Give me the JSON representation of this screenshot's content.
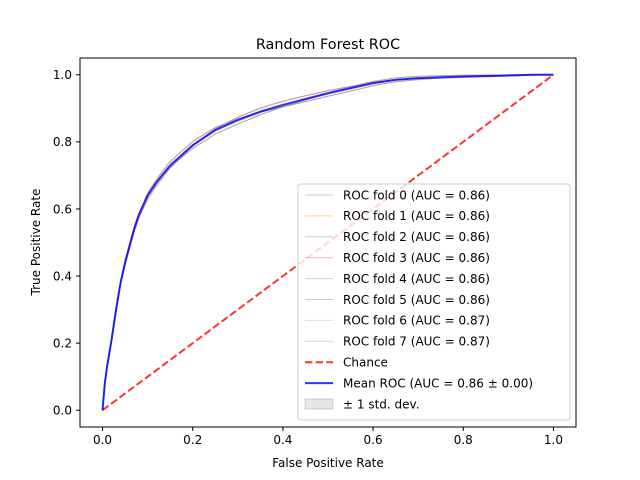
{
  "chart_data": {
    "type": "line",
    "title": "Random Forest ROC",
    "xlabel": "False Positive Rate",
    "ylabel": "True Positive Rate",
    "xlim": [
      -0.05,
      1.05
    ],
    "ylim": [
      -0.05,
      1.05
    ],
    "xticks": [
      "0.0",
      "0.2",
      "0.4",
      "0.6",
      "0.8",
      "1.0"
    ],
    "yticks": [
      "0.0",
      "0.2",
      "0.4",
      "0.6",
      "0.8",
      "1.0"
    ],
    "grid": false,
    "legend_position": "lower right",
    "series": [
      {
        "name": "ROC fold 0 (AUC = 0.86)",
        "color": "#1f77b4",
        "kind": "fold"
      },
      {
        "name": "ROC fold 1 (AUC = 0.86)",
        "color": "#ff7f0e",
        "kind": "fold"
      },
      {
        "name": "ROC fold 2 (AUC = 0.86)",
        "color": "#2ca02c",
        "kind": "fold"
      },
      {
        "name": "ROC fold 3 (AUC = 0.86)",
        "color": "#d62728",
        "kind": "fold"
      },
      {
        "name": "ROC fold 4 (AUC = 0.86)",
        "color": "#9467bd",
        "kind": "fold"
      },
      {
        "name": "ROC fold 5 (AUC = 0.86)",
        "color": "#8c564b",
        "kind": "fold"
      },
      {
        "name": "ROC fold 6 (AUC = 0.87)",
        "color": "#e377c2",
        "kind": "fold"
      },
      {
        "name": "ROC fold 7 (AUC = 0.87)",
        "color": "#7f7f7f",
        "kind": "fold"
      },
      {
        "name": "Chance",
        "color": "#ff0000",
        "kind": "chance",
        "x": [
          0,
          1
        ],
        "y": [
          0,
          1
        ]
      },
      {
        "name": "Mean ROC (AUC = 0.86 ± 0.00)",
        "color": "#0000ff",
        "kind": "mean",
        "x": [
          0,
          0.005,
          0.01,
          0.02,
          0.03,
          0.04,
          0.05,
          0.06,
          0.07,
          0.08,
          0.1,
          0.12,
          0.15,
          0.2,
          0.25,
          0.3,
          0.35,
          0.4,
          0.5,
          0.55,
          0.6,
          0.65,
          0.7,
          0.8,
          0.9,
          0.95,
          1.0
        ],
        "y": [
          0,
          0.08,
          0.13,
          0.21,
          0.3,
          0.38,
          0.44,
          0.49,
          0.54,
          0.58,
          0.64,
          0.68,
          0.73,
          0.79,
          0.835,
          0.865,
          0.89,
          0.91,
          0.945,
          0.96,
          0.975,
          0.985,
          0.99,
          0.995,
          0.998,
          1.0,
          1.0
        ]
      },
      {
        "name": "± 1 std. dev.",
        "color": "#808080",
        "kind": "band"
      }
    ]
  }
}
